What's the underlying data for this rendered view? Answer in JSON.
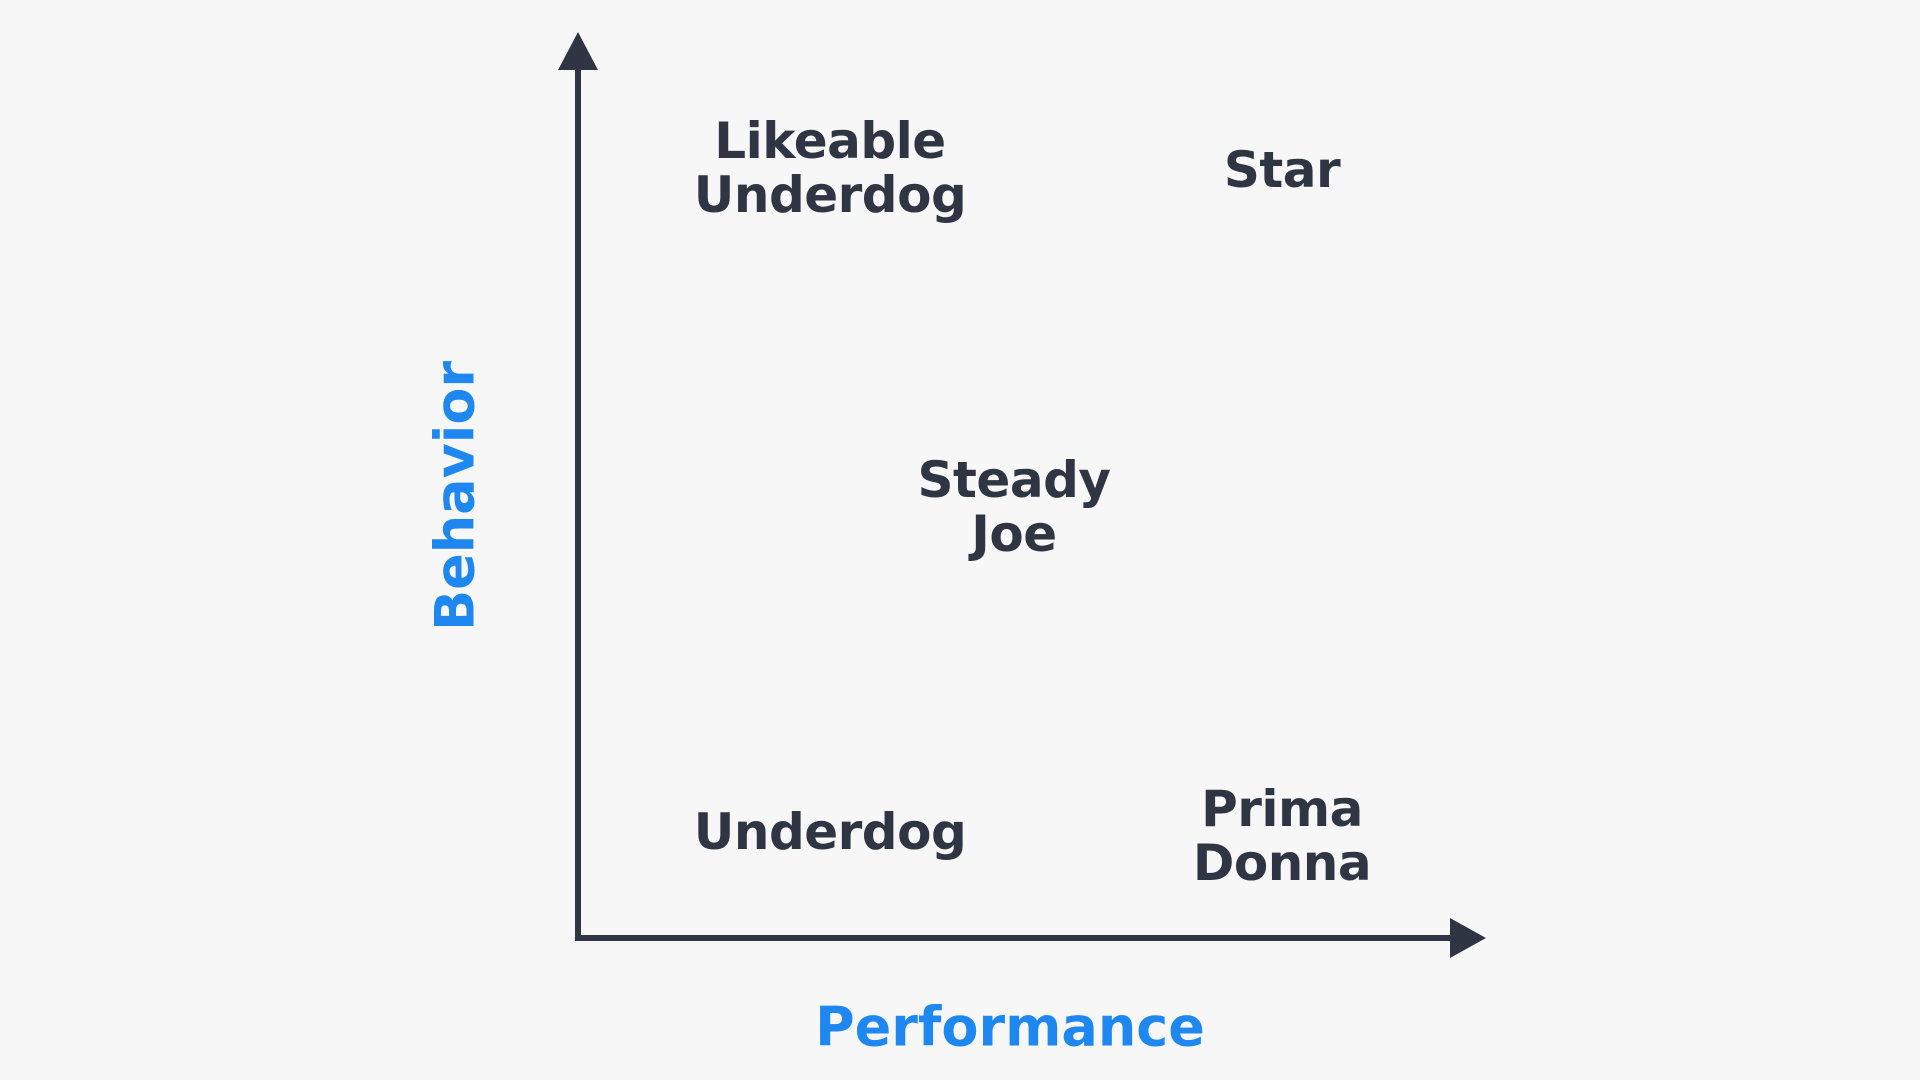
{
  "axes": {
    "x_label": "Performance",
    "y_label": "Behavior",
    "axis_color": "#2f3542",
    "label_color": "#1e88f0"
  },
  "quadrants": {
    "top_left": [
      "Likeable",
      "Underdog"
    ],
    "top_right": [
      "Star"
    ],
    "center": [
      "Steady",
      "Joe"
    ],
    "bottom_left": [
      "Underdog"
    ],
    "bottom_right": [
      "Prima",
      "Donna"
    ]
  }
}
